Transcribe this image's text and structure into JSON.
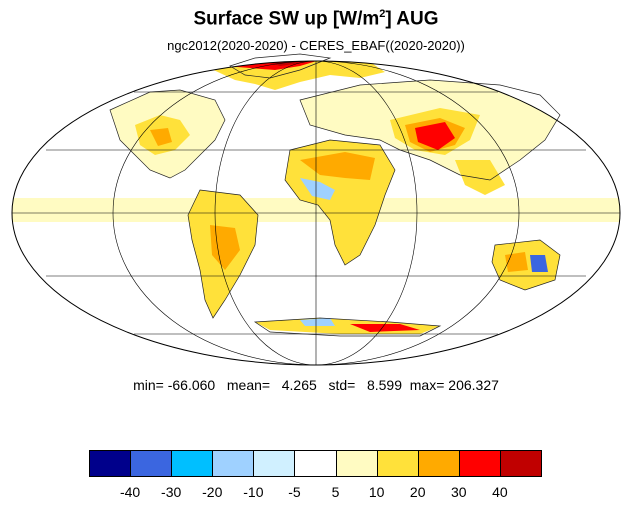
{
  "title": {
    "prefix": "Surface SW up [W/m",
    "superscript": "2",
    "suffix": "]  AUG"
  },
  "subtitle": "ngc2012(2020-2020) - CERES_EBAF((2020-2020))",
  "stats": "min= -66.060   mean=   4.265   std=   8.599  max= 206.327",
  "colorbar": {
    "colors": [
      "#00008b",
      "#3b66e0",
      "#00bfff",
      "#9fd1ff",
      "#d0f0ff",
      "#ffffff",
      "#fffbc2",
      "#ffe13a",
      "#ffaa00",
      "#ff0000",
      "#c00000"
    ],
    "labels": [
      "-40",
      "-30",
      "-20",
      "-10",
      "-5",
      "5",
      "10",
      "20",
      "30",
      "40"
    ]
  },
  "map": {
    "projection": "Mollweide",
    "field": "Surface SW up difference, August"
  }
}
